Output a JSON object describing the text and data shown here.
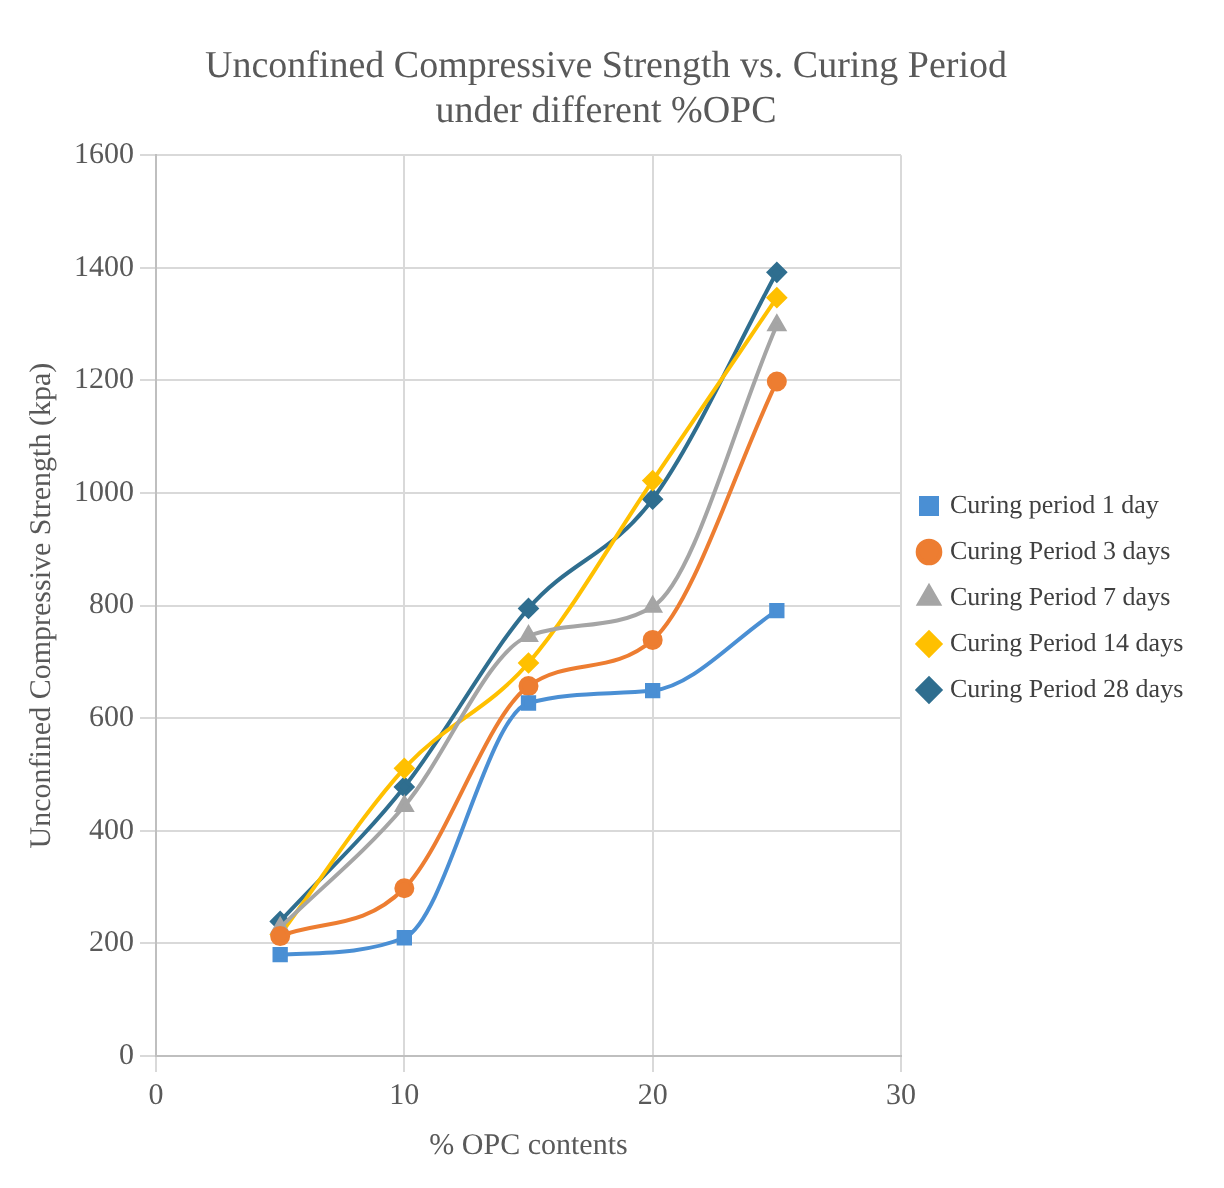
{
  "chart_data": {
    "type": "line",
    "title": [
      "Unconfined Compressive Strength vs. Curing Period",
      "under different %OPC"
    ],
    "xlabel": "% OPC contents",
    "ylabel": "Unconfined Compressive Strength (kpa)",
    "x": [
      5,
      10,
      15,
      20,
      25
    ],
    "xlim": [
      0,
      30
    ],
    "xticks": [
      0,
      10,
      20,
      30
    ],
    "ylim": [
      0,
      1600
    ],
    "yticks": [
      0,
      200,
      400,
      600,
      800,
      1000,
      1200,
      1400,
      1600
    ],
    "grid": true,
    "legend": "right",
    "series": [
      {
        "name": "Curing period 1 day",
        "color": "#4a8fd4",
        "marker": "square",
        "values": [
          180,
          210,
          627,
          649,
          791
        ]
      },
      {
        "name": "Curing Period 3 days",
        "color": "#ed7d31",
        "marker": "circle",
        "values": [
          213,
          298,
          657,
          739,
          1198
        ]
      },
      {
        "name": "Curing Period 7 days",
        "color": "#a5a5a5",
        "marker": "triangle",
        "values": [
          228,
          444,
          746,
          798,
          1298
        ]
      },
      {
        "name": "Curing Period 14 days",
        "color": "#ffc000",
        "marker": "diamond",
        "values": [
          216,
          511,
          698,
          1022,
          1347
        ]
      },
      {
        "name": "Curing Period 28 days",
        "color": "#2f6e8f",
        "marker": "diamond",
        "values": [
          239,
          478,
          795,
          989,
          1392
        ]
      }
    ]
  }
}
